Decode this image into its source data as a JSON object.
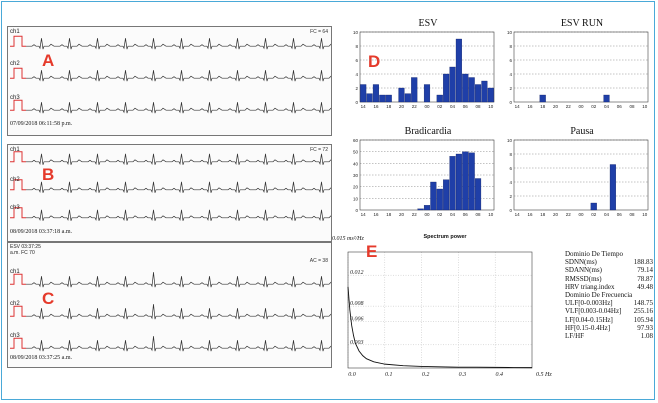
{
  "ecg_panels": [
    {
      "letter": "A",
      "timestamp": "07/09/2018 06:11:58 p.m.",
      "channels": [
        "ch1",
        "ch2",
        "ch3"
      ],
      "fc": "FC = 64"
    },
    {
      "letter": "B",
      "timestamp": "08/09/2018 03:37:18 a.m.",
      "channels": [
        "ch1",
        "ch2",
        "ch3"
      ],
      "fc": "FC = 72"
    },
    {
      "letter": "C",
      "timestamp": "08/09/2018 03:37:25 a.m.",
      "channels": [
        "ch1",
        "ch2",
        "ch3"
      ],
      "fc": "AC = 38",
      "esv_label": "ESV  03:37:25",
      "esv_sub": "a.m.    FC  70"
    }
  ],
  "panel_d_letter": "D",
  "panel_e_letter": "E",
  "chart_data": [
    {
      "type": "bar",
      "title": "ESV",
      "ylim": [
        0,
        10
      ],
      "yticks": [
        0,
        2,
        4,
        6,
        8,
        10
      ],
      "categories": [
        "14",
        "15",
        "16",
        "17",
        "18",
        "19",
        "20",
        "21",
        "22",
        "23",
        "00",
        "01",
        "02",
        "03",
        "04",
        "05",
        "06",
        "07",
        "08",
        "09",
        "10"
      ],
      "xticks": [
        "14",
        "16",
        "18",
        "20",
        "22",
        "00",
        "02",
        "04",
        "06",
        "08",
        "10"
      ],
      "values": [
        2.5,
        1.2,
        2.5,
        1,
        1,
        0,
        2,
        1.2,
        3.5,
        0,
        2.5,
        0,
        1,
        4,
        5,
        9,
        4,
        3.5,
        2.5,
        3,
        2
      ]
    },
    {
      "type": "bar",
      "title": "ESV RUN",
      "ylim": [
        0,
        10
      ],
      "yticks": [
        0,
        2,
        4,
        6,
        8,
        10
      ],
      "categories": [
        "14",
        "15",
        "16",
        "17",
        "18",
        "19",
        "20",
        "21",
        "22",
        "23",
        "00",
        "01",
        "02",
        "03",
        "04",
        "05",
        "06",
        "07",
        "08",
        "09",
        "10"
      ],
      "xticks": [
        "14",
        "16",
        "18",
        "20",
        "22",
        "00",
        "02",
        "04",
        "06",
        "08",
        "10"
      ],
      "values": [
        0,
        0,
        0,
        0,
        1,
        0,
        0,
        0,
        0,
        0,
        0,
        0,
        0,
        0,
        1,
        0,
        0,
        0,
        0,
        0,
        0
      ]
    },
    {
      "type": "bar",
      "title": "Bradicardia",
      "ylim": [
        0,
        60
      ],
      "yticks": [
        0,
        10,
        20,
        30,
        40,
        50,
        60
      ],
      "categories": [
        "14",
        "15",
        "16",
        "17",
        "18",
        "19",
        "20",
        "21",
        "22",
        "23",
        "00",
        "01",
        "02",
        "03",
        "04",
        "05",
        "06",
        "07",
        "08",
        "09",
        "10"
      ],
      "xticks": [
        "14",
        "16",
        "18",
        "20",
        "22",
        "00",
        "02",
        "04",
        "06",
        "08",
        "10"
      ],
      "values": [
        0,
        0,
        0,
        0,
        0,
        0,
        0,
        0,
        0,
        1,
        4,
        24,
        18,
        26,
        46,
        48,
        50,
        49,
        27,
        0,
        0
      ]
    },
    {
      "type": "bar",
      "title": "Pausa",
      "ylim": [
        0,
        10
      ],
      "yticks": [
        0,
        2,
        4,
        6,
        8,
        10
      ],
      "categories": [
        "14",
        "15",
        "16",
        "17",
        "18",
        "19",
        "20",
        "21",
        "22",
        "23",
        "00",
        "01",
        "02",
        "03",
        "04",
        "05",
        "06",
        "07",
        "08",
        "09",
        "10"
      ],
      "xticks": [
        "14",
        "16",
        "18",
        "20",
        "22",
        "00",
        "02",
        "04",
        "06",
        "08",
        "10"
      ],
      "values": [
        0,
        0,
        0,
        0,
        0,
        0,
        0,
        0,
        0,
        0,
        0,
        0,
        1,
        0,
        0,
        6.5,
        0,
        0,
        0,
        0,
        0
      ]
    },
    {
      "type": "line",
      "title": "Spectrum power",
      "ylabel": "0.015 ms²/Hz",
      "xlabel": "0.5 Hz",
      "xlim": [
        0,
        0.5
      ],
      "ylim": [
        0,
        0.015
      ],
      "xticks": [
        "0.0",
        "0.1",
        "0.2",
        "0.3",
        "0.4"
      ],
      "xtick_values": [
        0,
        0.1,
        0.2,
        0.3,
        0.4
      ],
      "yticks": [
        "0.012",
        "0.008",
        "0.006",
        "0.003"
      ],
      "ytick_values": [
        0.012,
        0.008,
        0.006,
        0.003
      ],
      "x": [
        0,
        0.005,
        0.01,
        0.015,
        0.02,
        0.03,
        0.04,
        0.05,
        0.07,
        0.1,
        0.15,
        0.2,
        0.25,
        0.3,
        0.35,
        0.4,
        0.45,
        0.5
      ],
      "y": [
        0.0105,
        0.0075,
        0.0055,
        0.0042,
        0.0032,
        0.0022,
        0.0016,
        0.0012,
        0.0008,
        0.0005,
        0.0003,
        0.0002,
        0.00015,
        0.0001,
        0.0001,
        8e-05,
        6e-05,
        5e-05
      ]
    }
  ],
  "hrv_table": {
    "time_header": "Dominio De Tiempo",
    "time_rows": [
      [
        "SDNN(ms)",
        "188.83"
      ],
      [
        "SDANN(ms)",
        "79.14"
      ],
      [
        "RMSSD(ms)",
        "78.87"
      ],
      [
        "HRV triang.index",
        "49.48"
      ]
    ],
    "freq_header": "Dominio De Frecuencia",
    "freq_rows": [
      [
        "ULF[0-0.003Hz]",
        "148.75"
      ],
      [
        "VLF[0.003-0.04Hz]",
        "255.16"
      ],
      [
        "LF[0.04-0.15Hz]",
        "105.94"
      ],
      [
        "HF[0.15-0.4Hz]",
        "97.93"
      ],
      [
        "LF/HF",
        "1.08"
      ]
    ]
  }
}
